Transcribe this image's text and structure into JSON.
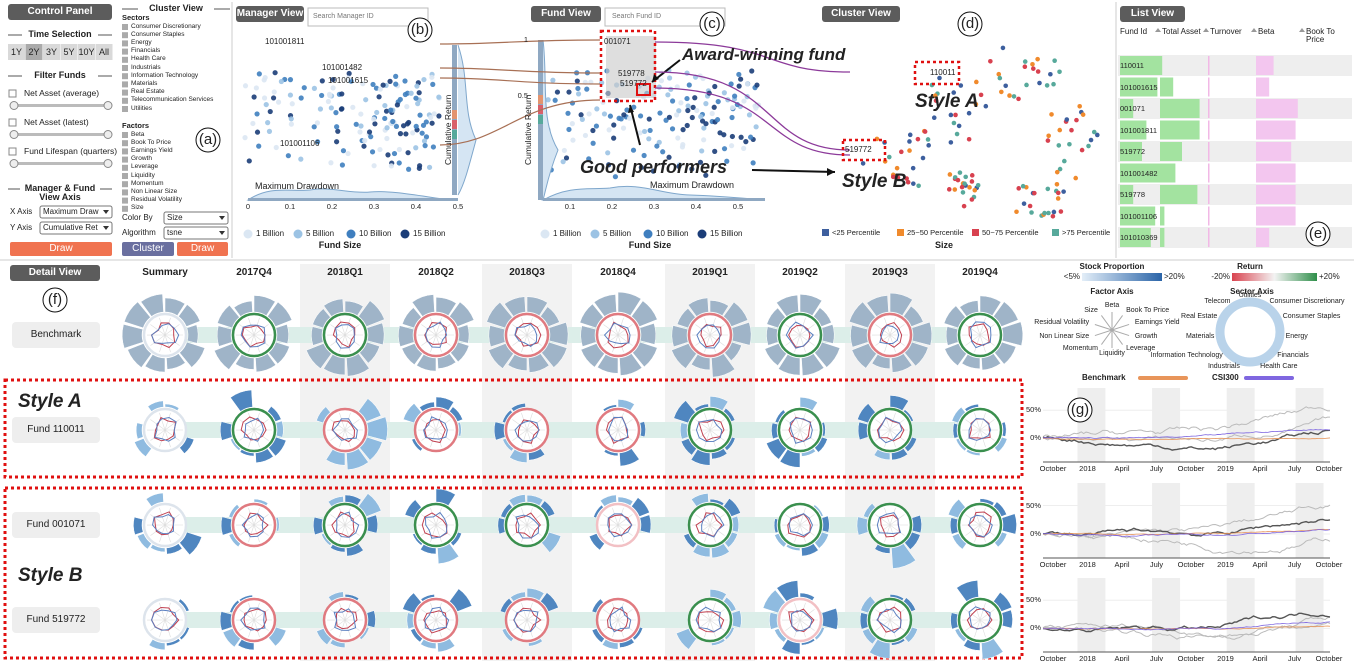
{
  "control_panel": {
    "title": "Control Panel",
    "time_selection": "Time Selection",
    "time_buttons": [
      "1Y",
      "2Y",
      "3Y",
      "5Y",
      "10Y",
      "All"
    ],
    "filter_funds": "Filter Funds",
    "filters": [
      "Net Asset (average)",
      "Net Asset (latest)",
      "Fund Lifespan (quarters)"
    ],
    "axis_title": "Manager & Fund View Axis",
    "x_axis_label": "X Axis",
    "x_axis_value": "Maximum Draw",
    "y_axis_label": "Y Axis",
    "y_axis_value": "Cumulative Ret",
    "draw": "Draw",
    "label": "(a)"
  },
  "cluster_settings": {
    "title": "Cluster View",
    "sectors_label": "Sectors",
    "sectors": [
      "Consumer Discretionary",
      "Consumer Staples",
      "Energy",
      "Financials",
      "Health Care",
      "Industrials",
      "Information Technology",
      "Materials",
      "Real Estate",
      "Telecommunication Services",
      "Utilities"
    ],
    "factors_label": "Factors",
    "factors": [
      "Beta",
      "Book To Price",
      "Earnings Yield",
      "Growth",
      "Leverage",
      "Liquidity",
      "Momentum",
      "Non Linear Size",
      "Residual Volatility",
      "Size"
    ],
    "color_by_label": "Color By",
    "color_by": "Size",
    "algorithm_label": "Algorithm",
    "algorithm": "tsne",
    "cluster": "Cluster",
    "draw": "Draw"
  },
  "manager_view": {
    "title": "Manager View",
    "search": "Search Manager ID",
    "label": "(b)",
    "ids": [
      "101001811",
      "101001482",
      "101001615",
      "101001106"
    ],
    "x_label": "Maximum Drawdown",
    "y_label": "Cumulative Return",
    "xticks": [
      "0",
      "0.1",
      "0.2",
      "0.3",
      "0.4",
      "0.5"
    ],
    "legend_title": "Fund Size",
    "legend": [
      "1 Billion",
      "5 Billion",
      "10 Billion",
      "15 Billion"
    ]
  },
  "fund_view": {
    "title": "Fund View",
    "search": "Search Fund ID",
    "label": "(c)",
    "ids": [
      "001071",
      "519778",
      "519772"
    ],
    "yticks": [
      "1",
      "0.5"
    ],
    "x_label": "Maximum Drawdown",
    "y_label": "Cumulative Return",
    "xticks": [
      "0.1",
      "0.2",
      "0.3",
      "0.4",
      "0.5"
    ],
    "award": "Award-winning fund",
    "good": "Good performers",
    "legend_title": "Fund Size",
    "legend": [
      "1 Billion",
      "5 Billion",
      "10 Billion",
      "15 Billion"
    ]
  },
  "cluster_view": {
    "title": "Cluster View",
    "label": "(d)",
    "ids": [
      "110011",
      "519772"
    ],
    "style_a": "Style A",
    "style_b": "Style B",
    "legend": [
      "<25 Percentile",
      "25~50 Percentile",
      "50~75 Percentile",
      ">75 Percentile"
    ],
    "legend_colors": [
      "#3d5f9e",
      "#f08a2c",
      "#d8414f",
      "#57a99b"
    ],
    "legend_title": "Size"
  },
  "list_view": {
    "title": "List View",
    "label": "(e)",
    "columns": [
      "Fund Id",
      "Total Asset",
      "Turnover",
      "Beta",
      "Book To Price"
    ],
    "bar_colors": [
      "#a3e3a0",
      "#a3e3a0",
      "#f2b8e6",
      "#f3c6ef"
    ],
    "rows": [
      {
        "id": "110011",
        "values": [
          0.95,
          0.05,
          0.02,
          0.4
        ]
      },
      {
        "id": "101001615",
        "values": [
          0.85,
          0.3,
          0.02,
          0.3
        ]
      },
      {
        "id": "001071",
        "values": [
          0.3,
          0.9,
          0.03,
          0.95
        ]
      },
      {
        "id": "101001811",
        "values": [
          0.6,
          0.9,
          0.03,
          0.9
        ]
      },
      {
        "id": "519772",
        "values": [
          0.5,
          0.5,
          0.03,
          0.8
        ]
      },
      {
        "id": "101001482",
        "values": [
          0.95,
          0.35,
          0.02,
          0.9
        ]
      },
      {
        "id": "519778",
        "values": [
          0.3,
          0.85,
          0.03,
          0.9
        ]
      },
      {
        "id": "101001106",
        "values": [
          0.8,
          0.1,
          0.02,
          0.9
        ]
      },
      {
        "id": "101010369",
        "values": [
          0.7,
          0.1,
          0.02,
          0.3
        ]
      }
    ]
  },
  "detail_view": {
    "title": "Detail View",
    "label": "(f)",
    "columns": [
      "Summary",
      "2017Q4",
      "2018Q1",
      "2018Q2",
      "2018Q3",
      "2018Q4",
      "2019Q1",
      "2019Q2",
      "2019Q3",
      "2019Q4"
    ],
    "rows": [
      "Benchmark",
      "Fund 110011",
      "Fund 001071",
      "Fund 519772"
    ],
    "style_a": "Style A",
    "style_b": "Style B"
  },
  "legend_panel": {
    "stock_proportion": "Stock Proportion",
    "sp_low": "<5%",
    "sp_high": ">20%",
    "return": "Return",
    "ret_low": "-20%",
    "ret_high": "+20%",
    "factor_axis": "Factor Axis",
    "factor_labels": [
      "Beta",
      "Book To Price",
      "Earnings Yield",
      "Growth",
      "Leverage",
      "Liquidity",
      "Momentum",
      "Non Linear Size",
      "Residual Volatility",
      "Size"
    ],
    "sector_axis": "Sector Axis",
    "sector_labels": [
      "Utilities",
      "Consumer Discretionary",
      "Consumer Staples",
      "Energy",
      "Financials",
      "Health Care",
      "Industrials",
      "Information Technology",
      "Materials",
      "Real Estate",
      "Telecom"
    ],
    "benchmark": "Benchmark",
    "csi300": "CSI300"
  },
  "line_charts": {
    "label": "(g)",
    "yticks": [
      "50%",
      "0%"
    ],
    "xticks": [
      "October",
      "2018",
      "April",
      "July",
      "October",
      "2019",
      "April",
      "July",
      "October"
    ]
  }
}
